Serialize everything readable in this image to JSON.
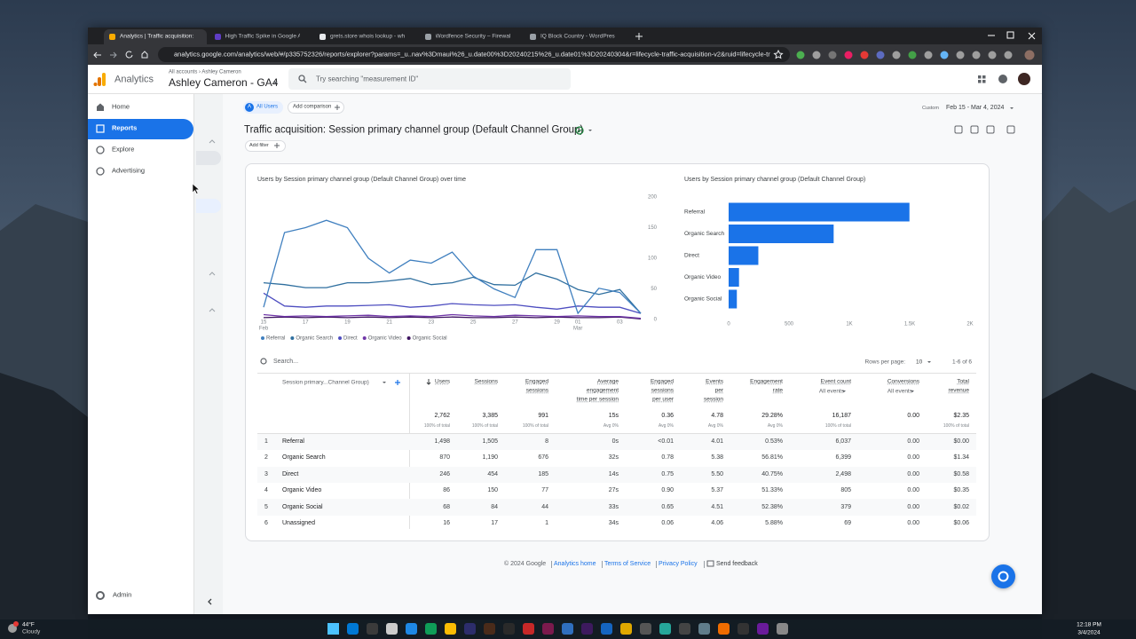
{
  "browser": {
    "tabs": [
      "Analytics | Traffic acquisition: S...",
      "High Traffic Spike in Google An...",
      "grets.store whois lookup - who...",
      "Wordfence Security – Firewall, ...",
      "IQ Block Country - WordPress p..."
    ],
    "url": "analytics.google.com/analytics/web/#/p335752326/reports/explorer?params=_u..nav%3Dmaui%26_u.date00%3D20240215%26_u.date01%3D20240304&r=lifecycle-traffic-acquisition-v2&ruid=lifecycle-traffic-acquisiti..."
  },
  "header": {
    "product": "Analytics",
    "breadcrumb": "All accounts › Ashley Cameron",
    "property": "Ashley Cameron - GA4",
    "search_placeholder": "Try searching \"measurement ID\""
  },
  "nav": {
    "items": [
      "Home",
      "Reports",
      "Explore",
      "Advertising"
    ],
    "admin": "Admin"
  },
  "toolbar": {
    "segment_badge": "A",
    "segment": "All Users",
    "add_comparison": "Add comparison",
    "date_label": "Custom",
    "date_range": "Feb 15 - Mar 4, 2024"
  },
  "report": {
    "title": "Traffic acquisition: Session primary channel group (Default Channel Group)",
    "add_filter": "Add filter"
  },
  "line_chart": {
    "type": "line",
    "title": "Users by Session primary channel group (Default Channel Group) over time",
    "categories": [
      "15",
      null,
      "17",
      null,
      "19",
      null,
      "21",
      null,
      "23",
      null,
      "25",
      null,
      "27",
      null,
      "29",
      "01",
      null,
      "03",
      null
    ],
    "month_labels": [
      {
        "category": 0,
        "label": "Feb"
      },
      {
        "category": 15,
        "label": "Mar"
      }
    ],
    "ylim": [
      0,
      200
    ],
    "yticks": [
      0,
      50,
      100,
      150,
      200
    ],
    "grid": false,
    "series": [
      {
        "name": "Referral",
        "color": "#3f7fbf",
        "values": [
          20,
          142,
          150,
          162,
          150,
          100,
          76,
          97,
          92,
          110,
          71,
          50,
          36,
          114,
          114,
          10,
          51,
          44,
          10
        ]
      },
      {
        "name": "Organic Search",
        "color": "#2f6f9f",
        "values": [
          60,
          57,
          52,
          52,
          60,
          60,
          63,
          67,
          57,
          60,
          69,
          57,
          56,
          76,
          66,
          49,
          41,
          49,
          10
        ]
      },
      {
        "name": "Direct",
        "color": "#4e4ec0",
        "values": [
          43,
          22,
          20,
          22,
          22,
          23,
          24,
          20,
          22,
          26,
          24,
          23,
          24,
          20,
          17,
          22,
          20,
          20,
          10
        ]
      },
      {
        "name": "Organic Video",
        "color": "#7037a8",
        "values": [
          8,
          5,
          6,
          5,
          6,
          7,
          5,
          6,
          5,
          8,
          6,
          5,
          7,
          6,
          5,
          6,
          5,
          5,
          2
        ]
      },
      {
        "name": "Organic Social",
        "color": "#3d1360",
        "values": [
          3,
          4,
          3,
          4,
          3,
          4,
          3,
          4,
          3,
          4,
          3,
          3,
          4,
          3,
          4,
          3,
          3,
          4,
          1
        ]
      }
    ]
  },
  "bar_chart": {
    "type": "bar",
    "orientation": "horizontal",
    "title": "Users by Session primary channel group (Default Channel Group)",
    "categories": [
      "Referral",
      "Organic Search",
      "Direct",
      "Organic Video",
      "Organic Social"
    ],
    "values": [
      1498,
      870,
      246,
      86,
      68
    ],
    "color": "#1a73e8",
    "xlim": [
      0,
      2000
    ],
    "xticks": [
      0,
      500,
      {
        "value": 1000,
        "label": "1K"
      },
      {
        "value": 1500,
        "label": "1.5K"
      },
      {
        "value": 2000,
        "label": "2K"
      }
    ],
    "grid": false
  },
  "table": {
    "search": "Search...",
    "rows_per_page_label": "Rows per page:",
    "rows_per_page": "10",
    "pagination": "1-6 of 6",
    "dimension_header": "Session primary...Channel Group)",
    "columns": [
      {
        "lines": [
          "Users"
        ]
      },
      {
        "lines": [
          "Sessions"
        ]
      },
      {
        "lines": [
          "Engaged",
          "sessions"
        ]
      },
      {
        "lines": [
          "Average",
          "engagement",
          "time per session"
        ]
      },
      {
        "lines": [
          "Engaged",
          "sessions",
          "per user"
        ]
      },
      {
        "lines": [
          "Events",
          "per",
          "session"
        ]
      },
      {
        "lines": [
          "Engagement",
          "rate"
        ]
      },
      {
        "lines": [
          "Event count"
        ],
        "sub": "All events"
      },
      {
        "lines": [
          "Conversions"
        ],
        "sub": "All events"
      },
      {
        "lines": [
          "Total",
          "revenue"
        ]
      }
    ],
    "totals": [
      "2,762",
      "3,385",
      "991",
      "15s",
      "0.36",
      "4.78",
      "29.28%",
      "16,187",
      "0.00",
      "$2.35"
    ],
    "totals_sub": [
      "100% of total",
      "100% of total",
      "100% of total",
      "Avg 0%",
      "Avg 0%",
      "Avg 0%",
      "Avg 0%",
      "100% of total",
      null,
      "100% of total"
    ],
    "rows": [
      [
        "1",
        "Referral",
        "1,498",
        "1,505",
        "8",
        "0s",
        "<0.01",
        "4.01",
        "0.53%",
        "6,037",
        "0.00",
        "$0.00"
      ],
      [
        "2",
        "Organic Search",
        "870",
        "1,190",
        "676",
        "32s",
        "0.78",
        "5.38",
        "56.81%",
        "6,399",
        "0.00",
        "$1.34"
      ],
      [
        "3",
        "Direct",
        "246",
        "454",
        "185",
        "14s",
        "0.75",
        "5.50",
        "40.75%",
        "2,498",
        "0.00",
        "$0.58"
      ],
      [
        "4",
        "Organic Video",
        "86",
        "150",
        "77",
        "27s",
        "0.90",
        "5.37",
        "51.33%",
        "805",
        "0.00",
        "$0.35"
      ],
      [
        "5",
        "Organic Social",
        "68",
        "84",
        "44",
        "33s",
        "0.65",
        "4.51",
        "52.38%",
        "379",
        "0.00",
        "$0.02"
      ],
      [
        "6",
        "Unassigned",
        "16",
        "17",
        "1",
        "34s",
        "0.06",
        "4.06",
        "5.88%",
        "69",
        "0.00",
        "$0.06"
      ]
    ]
  },
  "footer": {
    "copyright": "© 2024 Google",
    "links": [
      "Analytics home",
      "Terms of Service",
      "Privacy Policy"
    ],
    "feedback": "Send feedback"
  },
  "taskbar": {
    "temperature": "44°F",
    "weather": "Cloudy",
    "time": "12:18 PM",
    "date": "3/4/2024"
  }
}
